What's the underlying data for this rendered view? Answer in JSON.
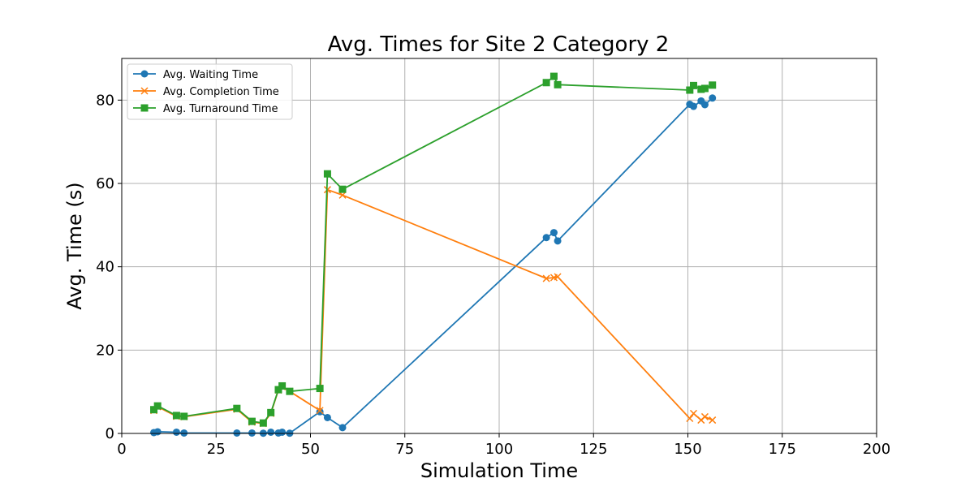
{
  "chart_data": {
    "type": "line",
    "title": "Avg. Times for Site 2 Category 2",
    "xlabel": "Simulation Time",
    "ylabel": "Avg. Time (s)",
    "xlim": [
      0,
      200
    ],
    "ylim": [
      0,
      90
    ],
    "xticks": [
      0,
      25,
      50,
      75,
      100,
      125,
      150,
      175,
      200
    ],
    "yticks": [
      0,
      20,
      40,
      60,
      80
    ],
    "grid": true,
    "legend_position": "top-left",
    "series": [
      {
        "name": "Avg. Waiting Time",
        "color": "#1f77b4",
        "marker": "circle",
        "x": [
          8.5,
          9.5,
          14.5,
          16.5,
          30.5,
          34.5,
          37.5,
          39.5,
          41.5,
          42.5,
          44.5,
          52.5,
          54.5,
          58.5,
          112.5,
          114.5,
          115.5,
          150.5,
          151.5,
          153.5,
          154.5,
          156.5
        ],
        "y": [
          0.2,
          0.4,
          0.3,
          0.1,
          0.1,
          0.1,
          0.05,
          0.3,
          0.1,
          0.3,
          0.05,
          5.2,
          3.8,
          1.4,
          47.0,
          48.2,
          46.2,
          79.0,
          78.5,
          79.8,
          78.9,
          80.5
        ]
      },
      {
        "name": "Avg. Completion Time",
        "color": "#ff7f0e",
        "marker": "x",
        "x": [
          8.5,
          9.5,
          14.5,
          16.5,
          30.5,
          34.5,
          37.5,
          39.5,
          41.5,
          42.5,
          44.5,
          52.5,
          54.5,
          58.5,
          112.5,
          114.5,
          115.5,
          150.5,
          151.5,
          153.5,
          154.5,
          156.5
        ],
        "y": [
          5.5,
          6.4,
          4.1,
          4.0,
          5.8,
          2.7,
          2.4,
          4.8,
          10.4,
          11.2,
          10.1,
          5.5,
          58.5,
          57.2,
          37.2,
          37.4,
          37.6,
          3.6,
          4.8,
          3.2,
          4.0,
          3.2
        ]
      },
      {
        "name": "Avg. Turnaround Time",
        "color": "#2ca02c",
        "marker": "square",
        "x": [
          8.5,
          9.5,
          14.5,
          16.5,
          30.5,
          34.5,
          37.5,
          39.5,
          41.5,
          42.5,
          44.5,
          52.5,
          54.5,
          58.5,
          112.5,
          114.5,
          115.5,
          150.5,
          151.5,
          153.5,
          154.5,
          156.5
        ],
        "y": [
          5.7,
          6.6,
          4.3,
          4.1,
          6.0,
          2.9,
          2.5,
          5.0,
          10.5,
          11.4,
          10.1,
          10.8,
          62.3,
          58.6,
          84.2,
          85.7,
          83.7,
          82.4,
          83.5,
          82.6,
          82.8,
          83.6
        ]
      }
    ]
  }
}
